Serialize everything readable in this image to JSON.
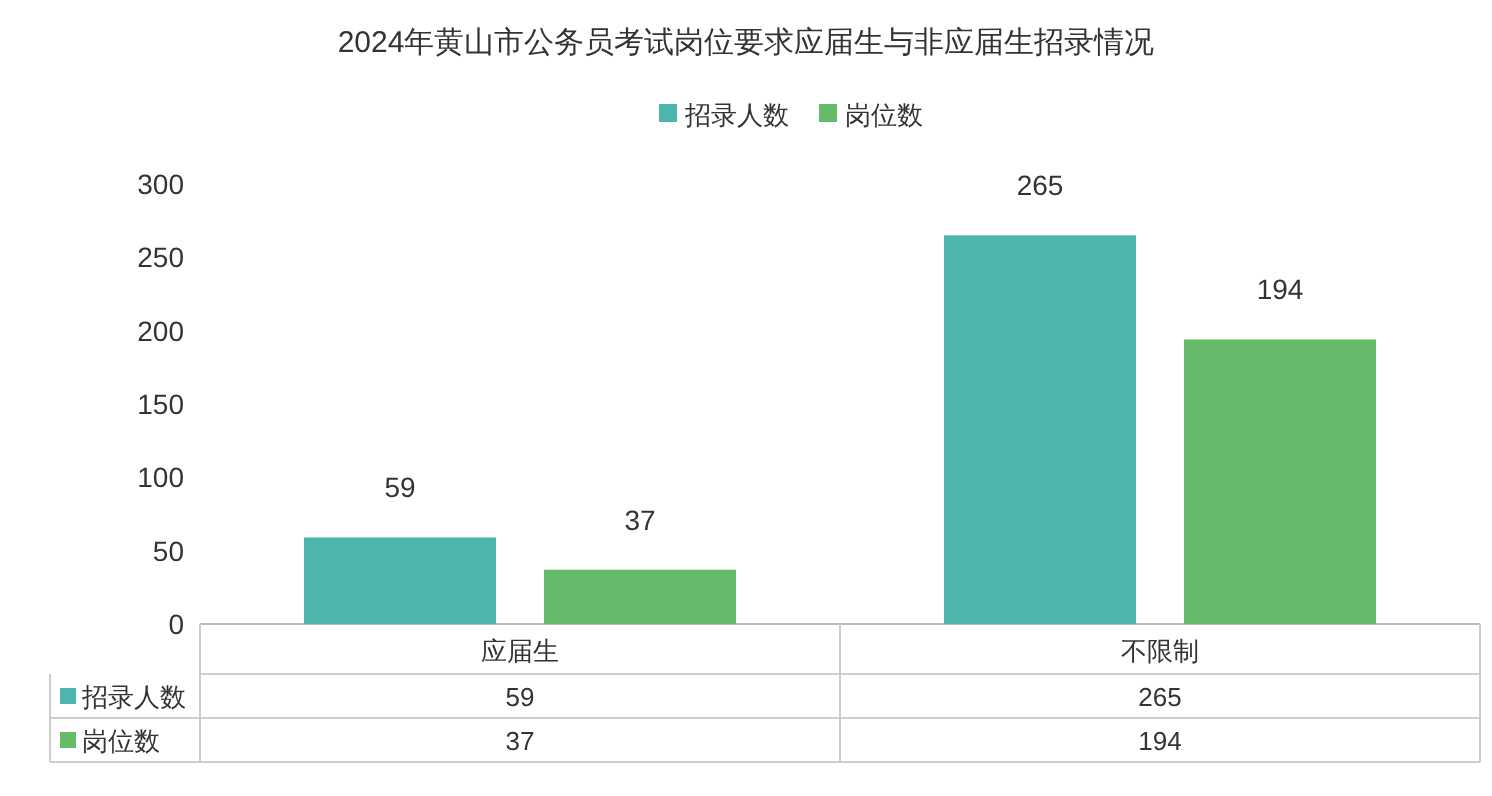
{
  "chart_data": {
    "type": "bar",
    "title": "2024年黄山市公务员考试岗位要求应届生与非应届生招录情况",
    "categories": [
      "应届生",
      "不限制"
    ],
    "series": [
      {
        "name": "招录人数",
        "color": "#4db6ac",
        "values": [
          59,
          265
        ],
        "value_labels": [
          "59",
          "265"
        ]
      },
      {
        "name": "岗位数",
        "color": "#66bb6a",
        "values": [
          37,
          194
        ],
        "value_labels": [
          "37",
          "194"
        ]
      }
    ],
    "ylim": [
      0,
      300
    ],
    "yticks": [
      0,
      50,
      100,
      150,
      200,
      250,
      300
    ],
    "annotations": [
      "59",
      "265",
      "37",
      "194"
    ],
    "legend": "top",
    "grid": false
  }
}
